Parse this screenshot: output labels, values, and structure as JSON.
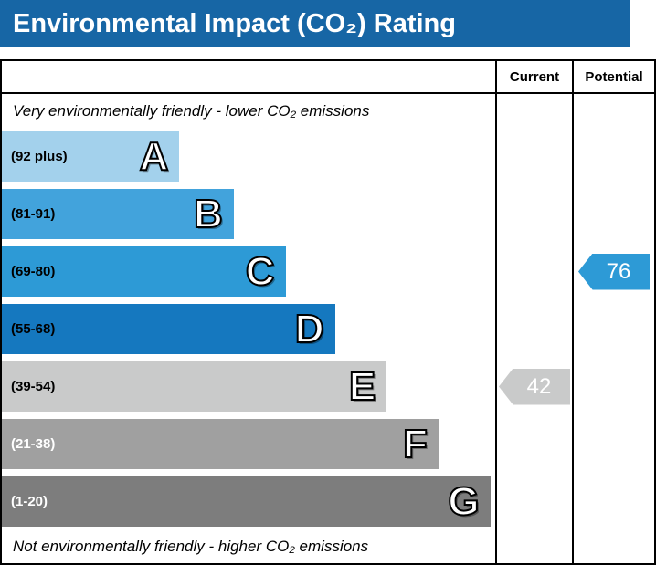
{
  "header": {
    "title": "Environmental Impact (CO₂) Rating",
    "bg_color": "#1766a5"
  },
  "table": {
    "columns": {
      "current": "Current",
      "potential": "Potential"
    },
    "top_note": "Very environmentally friendly - lower CO₂ emissions",
    "bottom_note": "Not environmentally friendly - higher CO₂ emissions",
    "bands": [
      {
        "letter": "A",
        "range": "(92 plus)",
        "color": "#a3d1ec",
        "width_pct": 36,
        "text_color": "#000000"
      },
      {
        "letter": "B",
        "range": "(81-91)",
        "color": "#42a3dc",
        "width_pct": 47,
        "text_color": "#000000"
      },
      {
        "letter": "C",
        "range": "(69-80)",
        "color": "#2d9ad6",
        "width_pct": 57.5,
        "text_color": "#000000"
      },
      {
        "letter": "D",
        "range": "(55-68)",
        "color": "#1578bf",
        "width_pct": 67.5,
        "text_color": "#000000"
      },
      {
        "letter": "E",
        "range": "(39-54)",
        "color": "#c9caca",
        "width_pct": 78,
        "text_color": "#000000"
      },
      {
        "letter": "F",
        "range": "(21-38)",
        "color": "#a0a0a0",
        "width_pct": 88.5,
        "text_color": "#ffffff"
      },
      {
        "letter": "G",
        "range": "(1-20)",
        "color": "#7d7d7d",
        "width_pct": 99,
        "text_color": "#ffffff"
      }
    ],
    "current": {
      "value": "42",
      "band": "E",
      "color": "#c9caca"
    },
    "potential": {
      "value": "76",
      "band": "C",
      "color": "#2d9ad6"
    }
  },
  "chart_data": {
    "type": "bar",
    "title": "Environmental Impact (CO₂) Rating",
    "categories": [
      "A (92 plus)",
      "B (81-91)",
      "C (69-80)",
      "D (55-68)",
      "E (39-54)",
      "F (21-38)",
      "G (1-20)"
    ],
    "values": [
      36,
      47,
      57.5,
      67.5,
      78,
      88.5,
      99
    ],
    "value_meaning": "relative band bar width percent of chart column",
    "annotations": {
      "current_rating": 42,
      "current_band": "E",
      "potential_rating": 76,
      "potential_band": "C"
    },
    "top_label": "Very environmentally friendly - lower CO₂ emissions",
    "bottom_label": "Not environmentally friendly - higher CO₂ emissions",
    "legend_position": "none",
    "grid": false
  }
}
